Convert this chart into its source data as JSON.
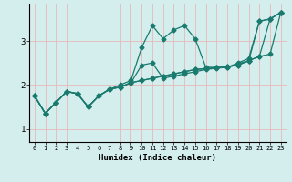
{
  "xlabel": "Humidex (Indice chaleur)",
  "background_color": "#d4eeee",
  "line_color": "#1a7a6e",
  "grid_color": "#e8b8b8",
  "xlim": [
    -0.5,
    23.5
  ],
  "ylim": [
    0.7,
    3.85
  ],
  "yticks": [
    1,
    2,
    3
  ],
  "xticks": [
    0,
    1,
    2,
    3,
    4,
    5,
    6,
    7,
    8,
    9,
    10,
    11,
    12,
    13,
    14,
    15,
    16,
    17,
    18,
    19,
    20,
    21,
    22,
    23
  ],
  "series1": [
    [
      0,
      1.75
    ],
    [
      1,
      1.35
    ],
    [
      2,
      1.6
    ],
    [
      3,
      1.85
    ],
    [
      4,
      1.8
    ],
    [
      5,
      1.5
    ],
    [
      6,
      1.75
    ],
    [
      7,
      1.9
    ],
    [
      8,
      2.0
    ],
    [
      9,
      2.1
    ],
    [
      10,
      2.85
    ],
    [
      11,
      3.35
    ],
    [
      12,
      3.05
    ],
    [
      13,
      3.25
    ],
    [
      14,
      3.35
    ],
    [
      15,
      3.05
    ],
    [
      16,
      2.4
    ],
    [
      17,
      2.4
    ],
    [
      18,
      2.4
    ],
    [
      19,
      2.5
    ],
    [
      20,
      2.6
    ],
    [
      21,
      3.45
    ],
    [
      22,
      3.5
    ],
    [
      23,
      3.65
    ]
  ],
  "series2": [
    [
      0,
      1.75
    ],
    [
      1,
      1.35
    ],
    [
      2,
      1.6
    ],
    [
      3,
      1.85
    ],
    [
      4,
      1.8
    ],
    [
      5,
      1.5
    ],
    [
      6,
      1.75
    ],
    [
      7,
      1.9
    ],
    [
      8,
      1.95
    ],
    [
      9,
      2.05
    ],
    [
      10,
      2.45
    ],
    [
      11,
      2.5
    ],
    [
      12,
      2.15
    ],
    [
      13,
      2.2
    ],
    [
      14,
      2.25
    ],
    [
      15,
      2.3
    ],
    [
      16,
      2.35
    ],
    [
      17,
      2.38
    ],
    [
      18,
      2.4
    ],
    [
      19,
      2.48
    ],
    [
      20,
      2.55
    ],
    [
      21,
      3.45
    ],
    [
      22,
      3.5
    ],
    [
      23,
      3.65
    ]
  ],
  "series3": [
    [
      0,
      1.75
    ],
    [
      1,
      1.35
    ],
    [
      2,
      1.6
    ],
    [
      3,
      1.85
    ],
    [
      4,
      1.8
    ],
    [
      5,
      1.5
    ],
    [
      6,
      1.75
    ],
    [
      7,
      1.9
    ],
    [
      8,
      1.95
    ],
    [
      9,
      2.05
    ],
    [
      10,
      2.1
    ],
    [
      11,
      2.15
    ],
    [
      12,
      2.2
    ],
    [
      13,
      2.25
    ],
    [
      14,
      2.3
    ],
    [
      15,
      2.35
    ],
    [
      16,
      2.37
    ],
    [
      17,
      2.39
    ],
    [
      18,
      2.41
    ],
    [
      19,
      2.45
    ],
    [
      20,
      2.55
    ],
    [
      21,
      2.65
    ],
    [
      22,
      3.5
    ],
    [
      23,
      3.65
    ]
  ],
  "series4": [
    [
      0,
      1.75
    ],
    [
      1,
      1.35
    ],
    [
      2,
      1.6
    ],
    [
      3,
      1.85
    ],
    [
      4,
      1.8
    ],
    [
      5,
      1.5
    ],
    [
      6,
      1.75
    ],
    [
      7,
      1.9
    ],
    [
      8,
      1.95
    ],
    [
      9,
      2.05
    ],
    [
      10,
      2.1
    ],
    [
      11,
      2.15
    ],
    [
      12,
      2.2
    ],
    [
      13,
      2.25
    ],
    [
      14,
      2.3
    ],
    [
      15,
      2.35
    ],
    [
      16,
      2.37
    ],
    [
      17,
      2.39
    ],
    [
      18,
      2.41
    ],
    [
      19,
      2.45
    ],
    [
      20,
      2.55
    ],
    [
      21,
      2.65
    ],
    [
      22,
      2.7
    ],
    [
      23,
      3.65
    ]
  ]
}
